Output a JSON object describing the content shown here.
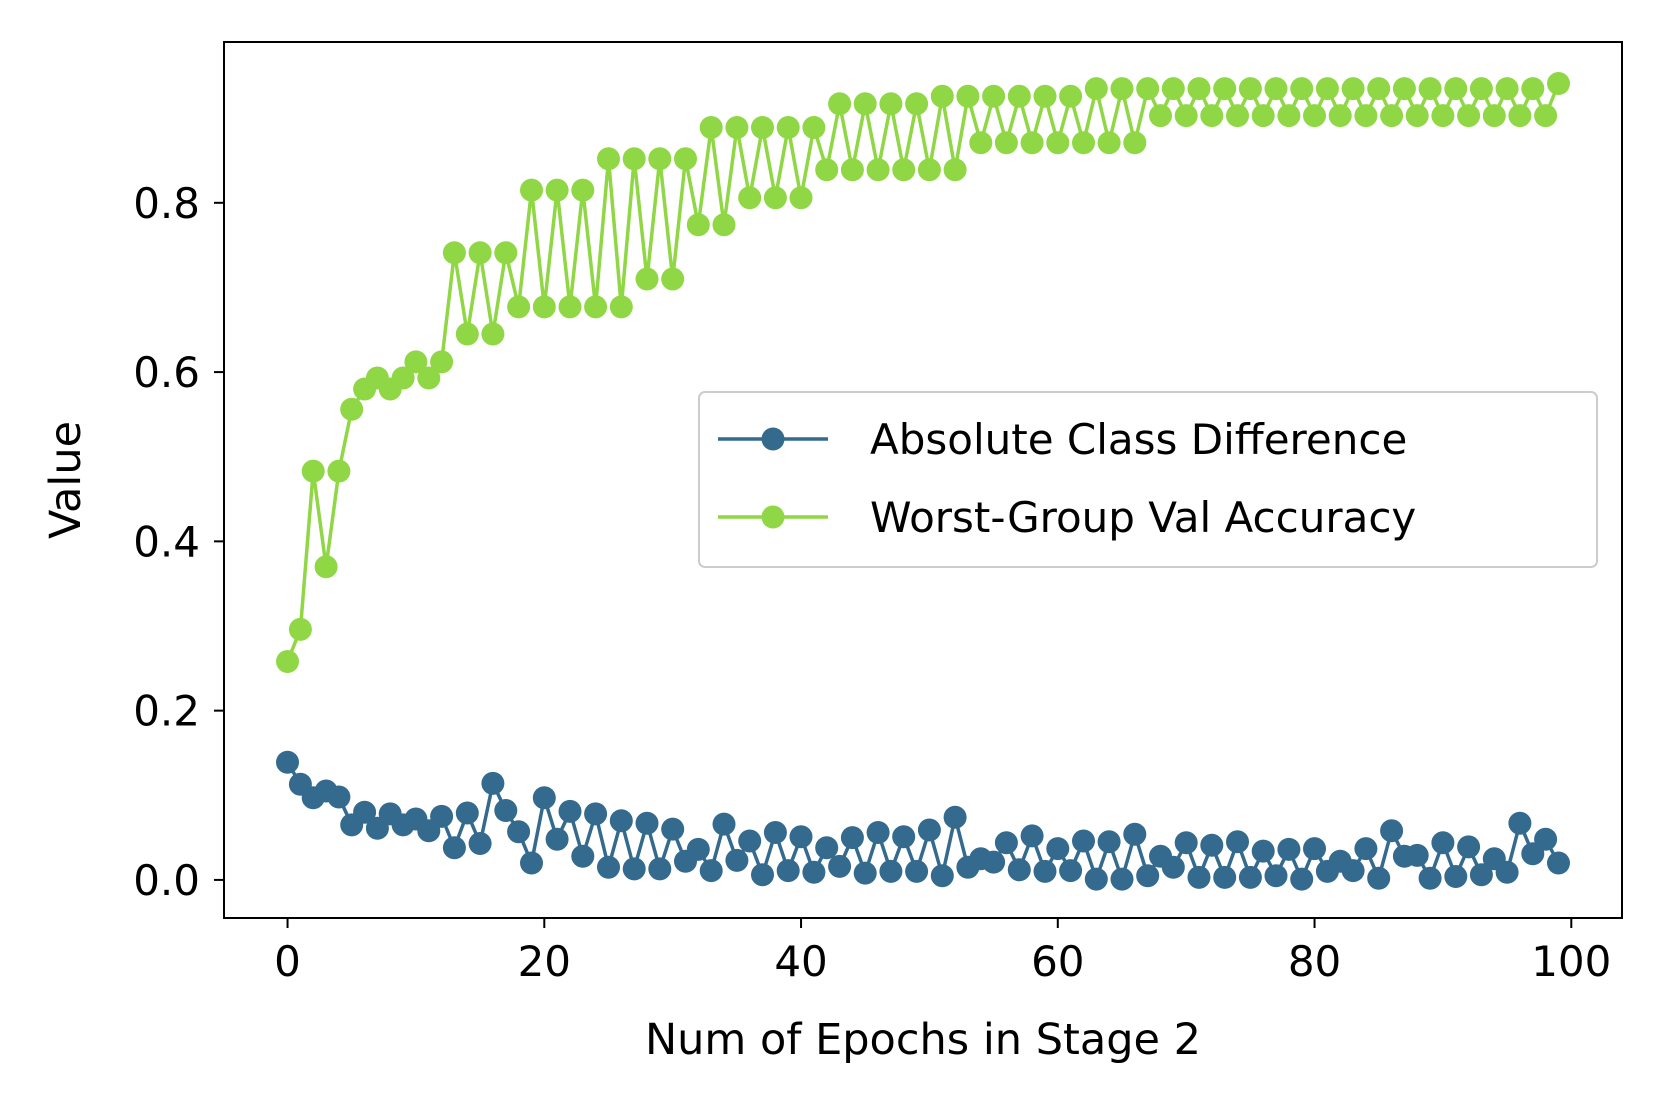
{
  "chart_data": {
    "type": "line",
    "title": "",
    "xlabel": "Num of Epochs in Stage 2",
    "ylabel": "Value",
    "xlim": [
      -4.95,
      103.95
    ],
    "ylim": [
      -0.045,
      0.99
    ],
    "xticks": [
      0,
      20,
      40,
      60,
      80,
      100
    ],
    "xtick_labels": [
      "0",
      "20",
      "40",
      "60",
      "80",
      "100"
    ],
    "yticks": [
      0.0,
      0.2,
      0.4,
      0.6,
      0.8
    ],
    "ytick_labels": [
      "0.0",
      "0.2",
      "0.4",
      "0.6",
      "0.8"
    ],
    "grid": false,
    "legend_position": "center-right",
    "x": [
      0,
      1,
      2,
      3,
      4,
      5,
      6,
      7,
      8,
      9,
      10,
      11,
      12,
      13,
      14,
      15,
      16,
      17,
      18,
      19,
      20,
      21,
      22,
      23,
      24,
      25,
      26,
      27,
      28,
      29,
      30,
      31,
      32,
      33,
      34,
      35,
      36,
      37,
      38,
      39,
      40,
      41,
      42,
      43,
      44,
      45,
      46,
      47,
      48,
      49,
      50,
      51,
      52,
      53,
      54,
      55,
      56,
      57,
      58,
      59,
      60,
      61,
      62,
      63,
      64,
      65,
      66,
      67,
      68,
      69,
      70,
      71,
      72,
      73,
      74,
      75,
      76,
      77,
      78,
      79,
      80,
      81,
      82,
      83,
      84,
      85,
      86,
      87,
      88,
      89,
      90,
      91,
      92,
      93,
      94,
      95,
      96,
      97,
      98,
      99
    ],
    "series": [
      {
        "name": "Absolute Class Difference",
        "color": "#336a8e",
        "values": [
          0.139,
          0.113,
          0.097,
          0.105,
          0.098,
          0.065,
          0.08,
          0.061,
          0.078,
          0.065,
          0.072,
          0.058,
          0.075,
          0.038,
          0.079,
          0.043,
          0.114,
          0.082,
          0.057,
          0.02,
          0.097,
          0.048,
          0.081,
          0.028,
          0.078,
          0.015,
          0.07,
          0.013,
          0.067,
          0.013,
          0.06,
          0.022,
          0.036,
          0.011,
          0.066,
          0.023,
          0.046,
          0.006,
          0.056,
          0.011,
          0.051,
          0.009,
          0.038,
          0.016,
          0.05,
          0.008,
          0.056,
          0.01,
          0.051,
          0.01,
          0.059,
          0.005,
          0.074,
          0.015,
          0.025,
          0.021,
          0.044,
          0.012,
          0.052,
          0.01,
          0.037,
          0.011,
          0.046,
          0.001,
          0.045,
          0.001,
          0.054,
          0.005,
          0.028,
          0.015,
          0.044,
          0.003,
          0.041,
          0.003,
          0.045,
          0.003,
          0.034,
          0.005,
          0.036,
          0.001,
          0.037,
          0.01,
          0.022,
          0.011,
          0.037,
          0.002,
          0.058,
          0.028,
          0.029,
          0.002,
          0.044,
          0.004,
          0.039,
          0.006,
          0.025,
          0.009,
          0.067,
          0.031,
          0.048,
          0.02
        ]
      },
      {
        "name": "Worst-Group Val Accuracy",
        "color": "#8fd744",
        "values": [
          0.258,
          0.296,
          0.483,
          0.37,
          0.483,
          0.556,
          0.58,
          0.593,
          0.58,
          0.593,
          0.612,
          0.593,
          0.612,
          0.741,
          0.645,
          0.741,
          0.645,
          0.741,
          0.677,
          0.815,
          0.677,
          0.815,
          0.677,
          0.815,
          0.677,
          0.852,
          0.677,
          0.852,
          0.71,
          0.852,
          0.71,
          0.852,
          0.774,
          0.889,
          0.774,
          0.889,
          0.806,
          0.889,
          0.806,
          0.889,
          0.806,
          0.889,
          0.839,
          0.917,
          0.839,
          0.917,
          0.839,
          0.917,
          0.839,
          0.917,
          0.839,
          0.926,
          0.839,
          0.926,
          0.871,
          0.926,
          0.871,
          0.926,
          0.871,
          0.926,
          0.871,
          0.926,
          0.871,
          0.935,
          0.871,
          0.935,
          0.871,
          0.935,
          0.903,
          0.935,
          0.903,
          0.935,
          0.903,
          0.935,
          0.903,
          0.935,
          0.903,
          0.935,
          0.903,
          0.935,
          0.903,
          0.935,
          0.903,
          0.935,
          0.903,
          0.935,
          0.903,
          0.935,
          0.903,
          0.935,
          0.903,
          0.935,
          0.903,
          0.935,
          0.903,
          0.935,
          0.903,
          0.935,
          0.903,
          0.941
        ]
      }
    ]
  }
}
